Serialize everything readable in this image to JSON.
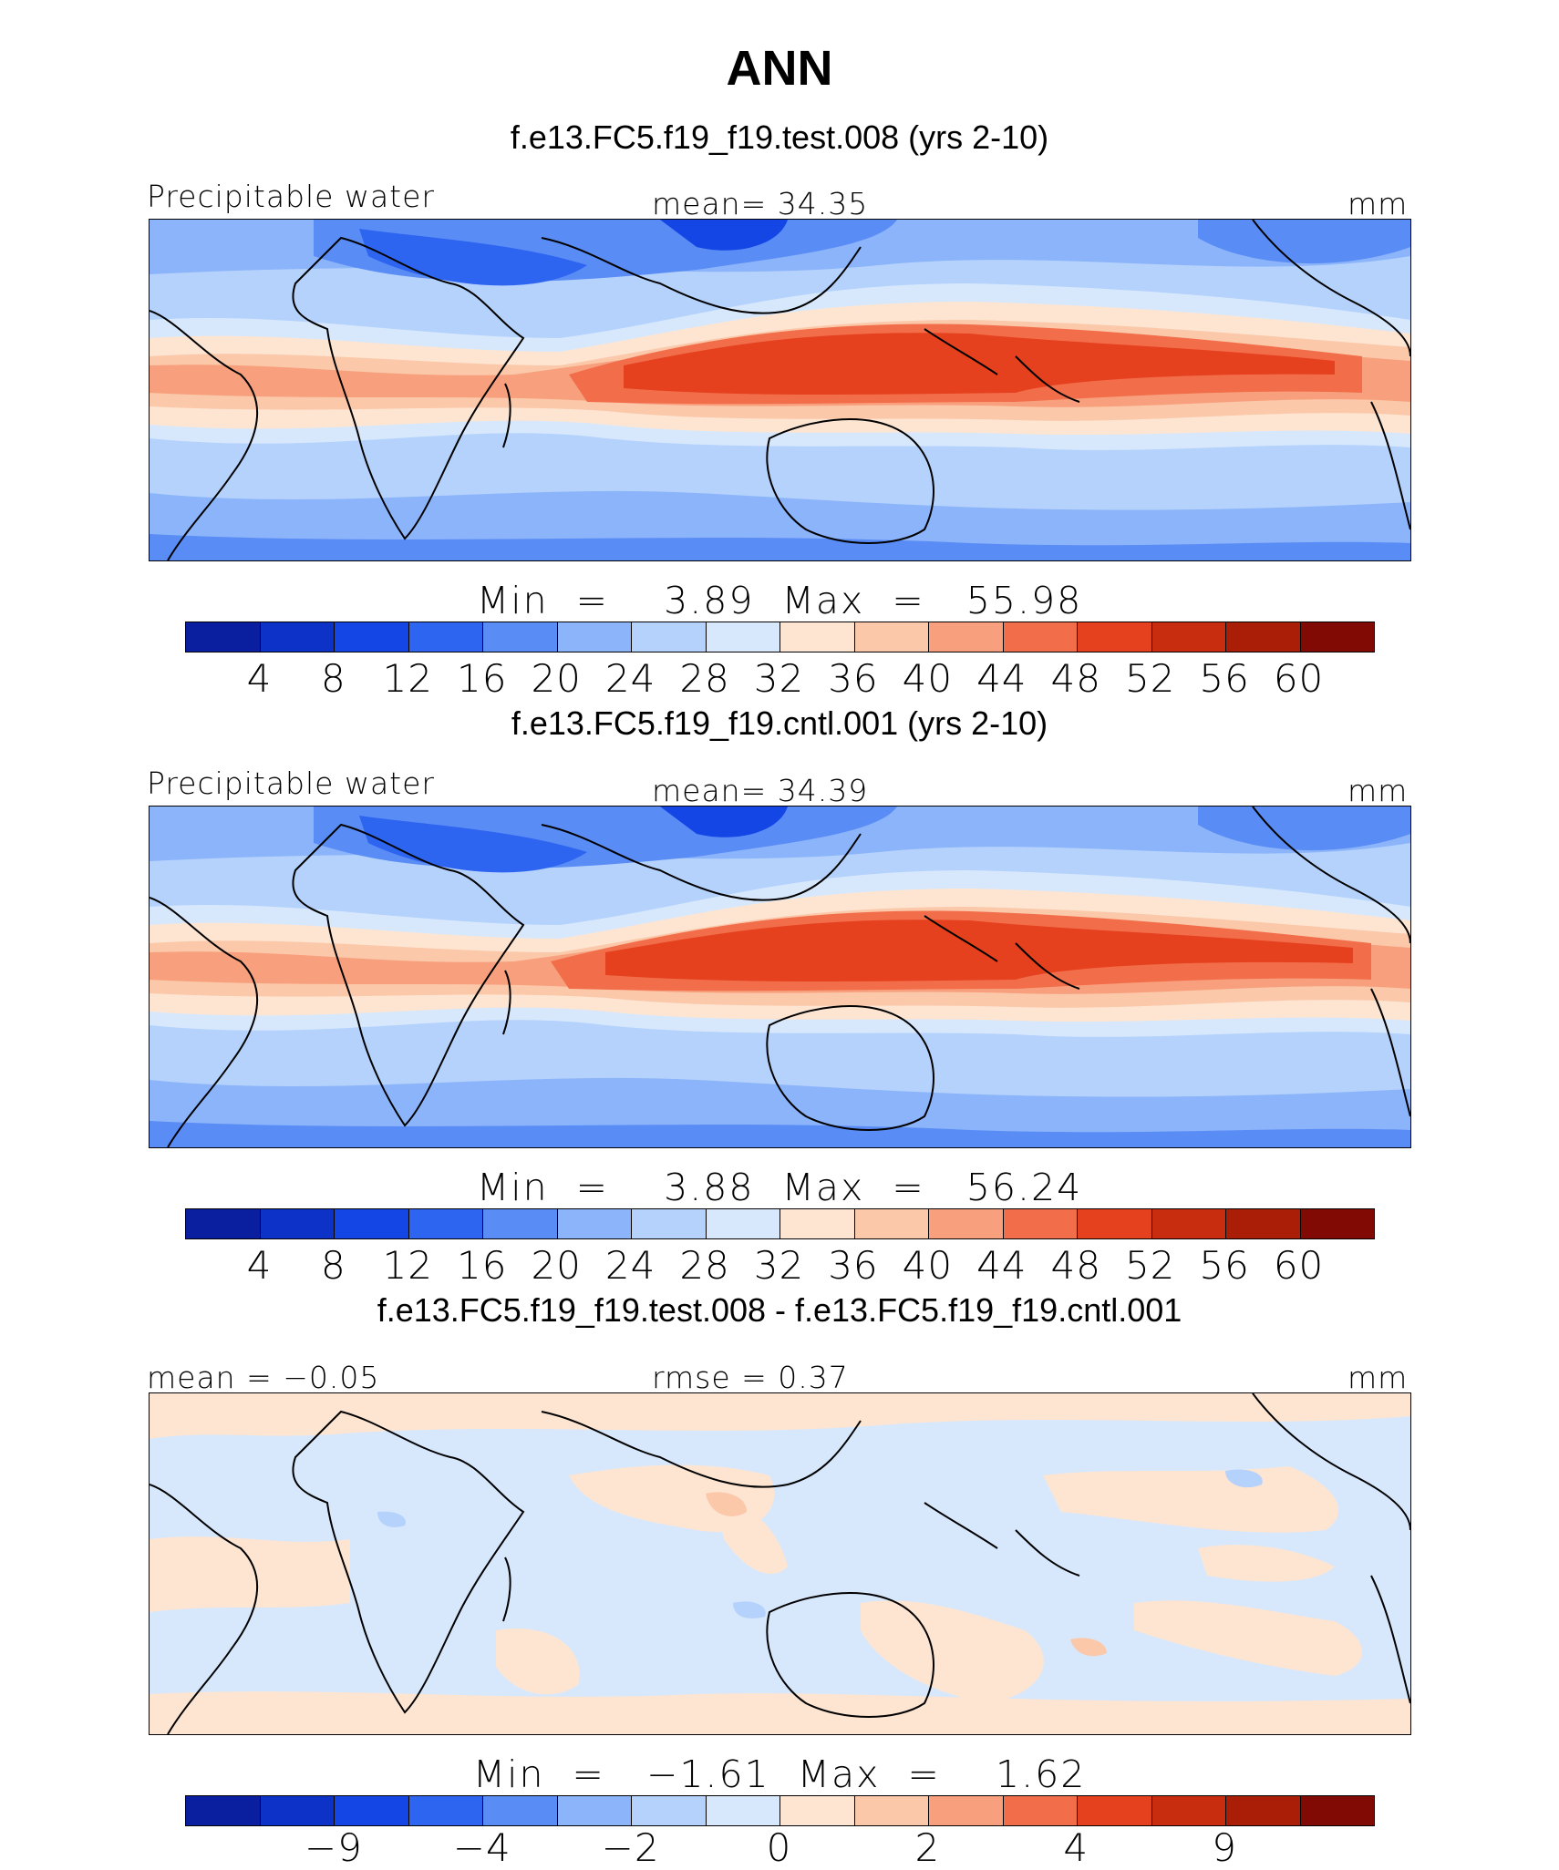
{
  "title": "ANN",
  "colorbar_colors": [
    "#0a1fa0",
    "#0d32c8",
    "#1446e6",
    "#2d64f0",
    "#5a8cf5",
    "#8cb4fa",
    "#b4d2fc",
    "#d7e8fd",
    "#fde5d2",
    "#fbc8aa",
    "#f8a07d",
    "#f26e4b",
    "#e6411e",
    "#c82d0f",
    "#aa1e08",
    "#820a05"
  ],
  "panels": [
    {
      "case_title": "f.e13.FC5.f19_f19.test.008 (yrs 2-10)",
      "left_label": "Precipitable water",
      "center_label": "mean=   34.35",
      "units": "mm",
      "min_max": "Min  =    3.89  Max  =   55.98",
      "ticks": [
        "4",
        "8",
        "12",
        "16",
        "20",
        "24",
        "28",
        "32",
        "36",
        "40",
        "44",
        "48",
        "52",
        "56",
        "60"
      ],
      "field_max": 55.98,
      "field_min": 3.89
    },
    {
      "case_title": "f.e13.FC5.f19_f19.cntl.001 (yrs 2-10)",
      "left_label": "Precipitable water",
      "center_label": "mean=   34.39",
      "units": "mm",
      "min_max": "Min  =    3.88  Max  =   56.24",
      "ticks": [
        "4",
        "8",
        "12",
        "16",
        "20",
        "24",
        "28",
        "32",
        "36",
        "40",
        "44",
        "48",
        "52",
        "56",
        "60"
      ],
      "field_max": 56.24,
      "field_min": 3.88
    },
    {
      "case_title": "f.e13.FC5.f19_f19.test.008 - f.e13.FC5.f19_f19.cntl.001",
      "left_label": "mean =   −0.05",
      "center_label": "rmse =    0.37",
      "units": "mm",
      "min_max": "Min  =   −1.61  Max  =    1.62",
      "ticks": [
        "−9",
        "−4",
        "−2",
        "0",
        "2",
        "4",
        "9"
      ],
      "field_max": 1.62,
      "field_min": -1.61
    }
  ]
}
